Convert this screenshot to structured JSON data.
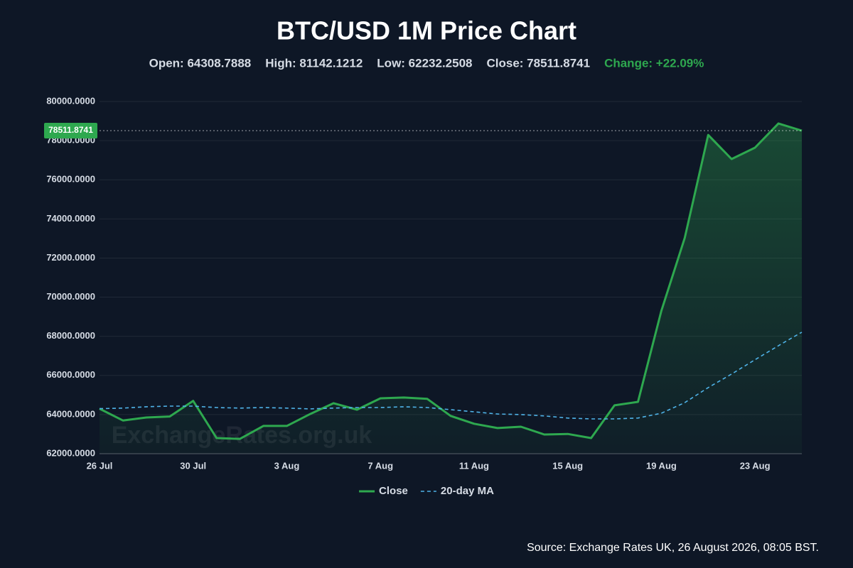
{
  "chart_data": {
    "type": "line",
    "title": "BTC/USD 1M Price Chart",
    "stats": [
      "Open: 64308.7888",
      "High: 81142.1212",
      "Low: 62232.2508",
      "Close: 78511.8741"
    ],
    "change": "Change: +22.09%",
    "change_color": "#2ea84f",
    "watermark": "ExchangeRates.org.uk",
    "source": "Source: Exchange Rates UK, 26 August 2026, 08:05 BST.",
    "categories": [
      "26 Jul",
      null,
      null,
      null,
      "30 Jul",
      null,
      null,
      null,
      "3 Aug",
      null,
      null,
      null,
      "7 Aug",
      null,
      null,
      null,
      "11 Aug",
      null,
      null,
      null,
      "15 Aug",
      null,
      null,
      null,
      "19 Aug",
      null,
      null,
      null,
      "23 Aug",
      null,
      null
    ],
    "series": [
      {
        "name": "Close",
        "color": "#2ea84f",
        "style": "solid",
        "values": [
          64300,
          63700,
          63850,
          63900,
          64700,
          62800,
          62760,
          63420,
          63420,
          64030,
          64580,
          64250,
          64830,
          64870,
          64800,
          63930,
          63530,
          63310,
          63380,
          62980,
          63010,
          62800,
          64470,
          64650,
          69300,
          73030,
          78290,
          77060,
          77640,
          78880,
          78511.8741
        ]
      },
      {
        "name": "20-day MA",
        "color": "#4fb3e8",
        "style": "dashed",
        "values": [
          64300,
          64330,
          64400,
          64430,
          64430,
          64360,
          64330,
          64360,
          64330,
          64290,
          64330,
          64360,
          64360,
          64400,
          64360,
          64250,
          64140,
          64030,
          64000,
          63930,
          63820,
          63780,
          63780,
          63820,
          64070,
          64610,
          65380,
          66070,
          66800,
          67520,
          68210
        ]
      }
    ],
    "ylim": [
      62000,
      80000
    ],
    "yticks": [
      {
        "value": 62000,
        "label": "62000.0000"
      },
      {
        "value": 64000,
        "label": "64000.0000"
      },
      {
        "value": 66000,
        "label": "66000.0000"
      },
      {
        "value": 68000,
        "label": "68000.0000"
      },
      {
        "value": 70000,
        "label": "70000.0000"
      },
      {
        "value": 72000,
        "label": "72000.0000"
      },
      {
        "value": 74000,
        "label": "74000.0000"
      },
      {
        "value": 76000,
        "label": "76000.0000"
      },
      {
        "value": 78000,
        "label": "78000.0000"
      },
      {
        "value": 80000,
        "label": "80000.0000"
      }
    ],
    "grid": true,
    "legend": "bottom"
  }
}
